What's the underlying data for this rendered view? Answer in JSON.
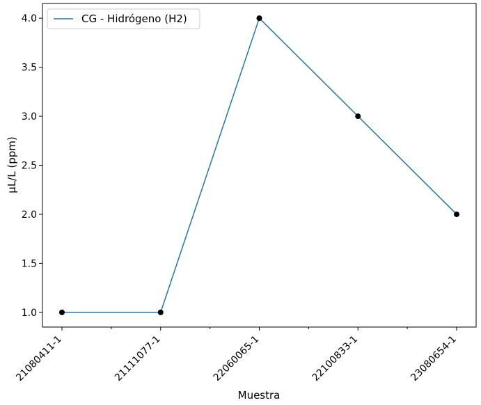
{
  "chart_data": {
    "type": "line",
    "categories": [
      "21080411-1",
      "21111077-1",
      "22060065-1",
      "22100833-1",
      "23080654-1"
    ],
    "series": [
      {
        "name": "CG - Hidrógeno (H2)",
        "values": [
          1.0,
          1.0,
          4.0,
          3.0,
          2.0
        ],
        "color": "#1f77b4",
        "marker_color": "#000000"
      }
    ],
    "xlabel": "Muestra",
    "ylabel": "µL/L (ppm)",
    "ylim": [
      0.85,
      4.15
    ],
    "yticks": [
      1.0,
      1.5,
      2.0,
      2.5,
      3.0,
      3.5,
      4.0
    ],
    "ytick_labels": [
      "1.0",
      "1.5",
      "2.0",
      "2.5",
      "3.0",
      "3.5",
      "4.0"
    ],
    "grid": false,
    "legend_position": "top-left"
  }
}
